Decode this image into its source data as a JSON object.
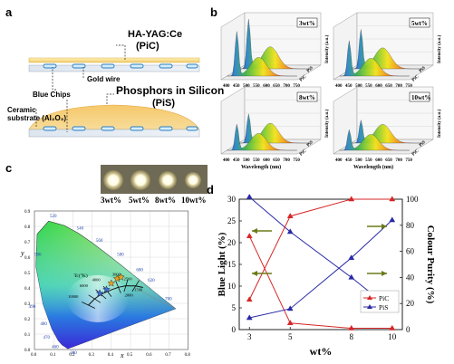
{
  "panels": {
    "a": "a",
    "b": "b",
    "c": "c",
    "d": "d"
  },
  "panel_a": {
    "pic_title": "HA-YAG:Ce",
    "pic_sub": "(PiC)",
    "gold_wire": "Gold wire",
    "blue_chips": "Blue Chips",
    "ceramic_l1": "Ceramic",
    "ceramic_l2": "substrate (Al₂O₃)",
    "pis_label": "Phosphors in Silicon",
    "pis_sub": "(PiS)"
  },
  "panel_b": {
    "plots": [
      {
        "label": "3wt%"
      },
      {
        "label": "5wt%"
      },
      {
        "label": "8wt%"
      },
      {
        "label": "10wt%"
      }
    ],
    "xlabel": "Wavelength (nm)",
    "ticks": [
      "400",
      "450",
      "500",
      "550",
      "600",
      "650",
      "700",
      "750"
    ],
    "zlabel": "Intensity (a.u.)",
    "row_pis": "PiS",
    "row_pic": "PiC"
  },
  "panel_c": {
    "photo_labels": [
      "3wt%",
      "5wt%",
      "8wt%",
      "10wt%"
    ],
    "xlabel": "x",
    "ylabel": "y",
    "tc_label": "Tc(°K)",
    "cct_labels": [
      "10000",
      "6000",
      "4000",
      "3000",
      "2500",
      "2000",
      "1500"
    ],
    "locus_labels": [
      "520",
      "540",
      "560",
      "580",
      "600",
      "620",
      "700",
      "500",
      "490",
      "480",
      "470",
      "460",
      "380"
    ],
    "x_ticks": [
      "0.0",
      "0.1",
      "0.2",
      "0.3",
      "0.4",
      "0.5",
      "0.6",
      "0.7",
      "0.8"
    ],
    "y_ticks": [
      "0.0",
      "0.1",
      "0.2",
      "0.3",
      "0.4",
      "0.5",
      "0.6",
      "0.7",
      "0.8",
      "0.9"
    ]
  },
  "chart_data": {
    "type": "line",
    "x": [
      3,
      5,
      8,
      10
    ],
    "xlabel": "wt%",
    "ylabel_left": "Blue Light (%)",
    "ylabel_right": "Colour Purity (%)",
    "ylim_left": [
      0,
      30
    ],
    "ylim_right": [
      0,
      100
    ],
    "y_left_ticks": [
      0,
      5,
      10,
      15,
      20,
      25,
      30
    ],
    "y_right_ticks": [
      0,
      20,
      40,
      60,
      80,
      100
    ],
    "legend_position": "right",
    "series": [
      {
        "name": "PiC",
        "axis": "left",
        "metric": "blue",
        "color": "#d62728",
        "marker": "triangle",
        "values": [
          21.5,
          1.5,
          0.3,
          0.3
        ]
      },
      {
        "name": "PiS",
        "axis": "left",
        "metric": "blue",
        "color": "#2a2aa8",
        "marker": "triangle",
        "values": [
          30.5,
          22.5,
          12,
          4.5
        ]
      },
      {
        "name": "PiC",
        "axis": "right",
        "metric": "purity",
        "color": "#d62728",
        "marker": "triangle",
        "values": [
          23,
          87,
          100,
          100
        ]
      },
      {
        "name": "PiS",
        "axis": "right",
        "metric": "purity",
        "color": "#2a2aa8",
        "marker": "triangle",
        "values": [
          9,
          16,
          55,
          84
        ]
      }
    ]
  }
}
